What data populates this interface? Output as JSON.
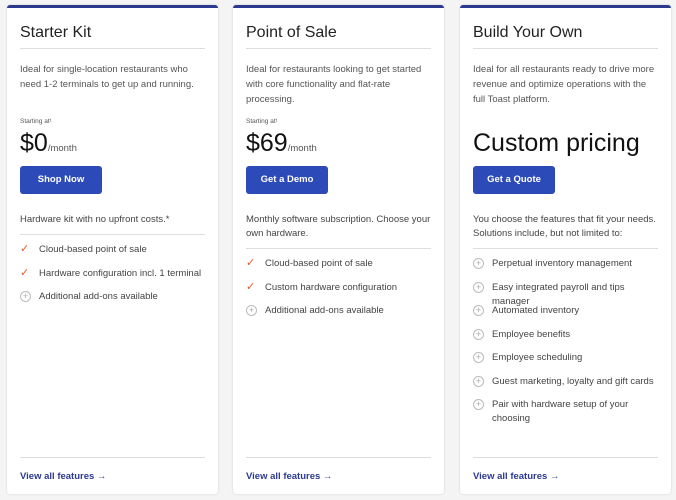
{
  "plans": [
    {
      "title": "Starter Kit",
      "desc": "Ideal for single-location restaurants who need 1-2 terminals to get up and running.",
      "starting": "Starting at¹",
      "price": "$0",
      "per": "/month",
      "button": "Shop Now",
      "hardware": "Hardware kit with no upfront costs.*",
      "features": [
        {
          "icon": "check",
          "text": "Cloud-based point of sale"
        },
        {
          "icon": "check",
          "text": "Hardware configuration incl. 1 terminal"
        },
        {
          "icon": "plus",
          "text": "Additional add-ons available"
        }
      ],
      "link": "View all features →"
    },
    {
      "title": "Point of Sale",
      "desc": "Ideal for restaurants looking to get started with core functionality and flat-rate processing.",
      "starting": "Starting at¹",
      "price": "$69",
      "per": "/month",
      "button": "Get a Demo",
      "hardware": "Monthly software subscription. Choose your own hardware.",
      "features": [
        {
          "icon": "check",
          "text": "Cloud-based point of sale"
        },
        {
          "icon": "check",
          "text": "Custom hardware configuration"
        },
        {
          "icon": "plus",
          "text": "Additional add-ons available"
        }
      ],
      "link": "View all features →"
    },
    {
      "title": "Build Your Own",
      "desc": "Ideal for all restaurants ready to drive more revenue and optimize operations with the full Toast platform.",
      "custom": "Custom pricing",
      "button": "Get a Quote",
      "hardware": "You choose the features that fit your needs. Solutions include, but not limited to:",
      "features": [
        {
          "icon": "plus",
          "text": "Perpetual inventory management"
        },
        {
          "icon": "plus",
          "text": "Easy integrated payroll and tips manager"
        },
        {
          "icon": "plus",
          "text": "Automated inventory"
        },
        {
          "icon": "plus",
          "text": "Employee benefits"
        },
        {
          "icon": "plus",
          "text": "Employee scheduling"
        },
        {
          "icon": "plus",
          "text": "Guest marketing, loyalty and gift cards"
        },
        {
          "icon": "plus",
          "text": "Pair with hardware setup of your choosing"
        }
      ],
      "link": "View all features →"
    }
  ],
  "colors": {
    "accent": "#2d4bb8",
    "check": "#e05a2b",
    "border_top": "#2b3a8f"
  }
}
